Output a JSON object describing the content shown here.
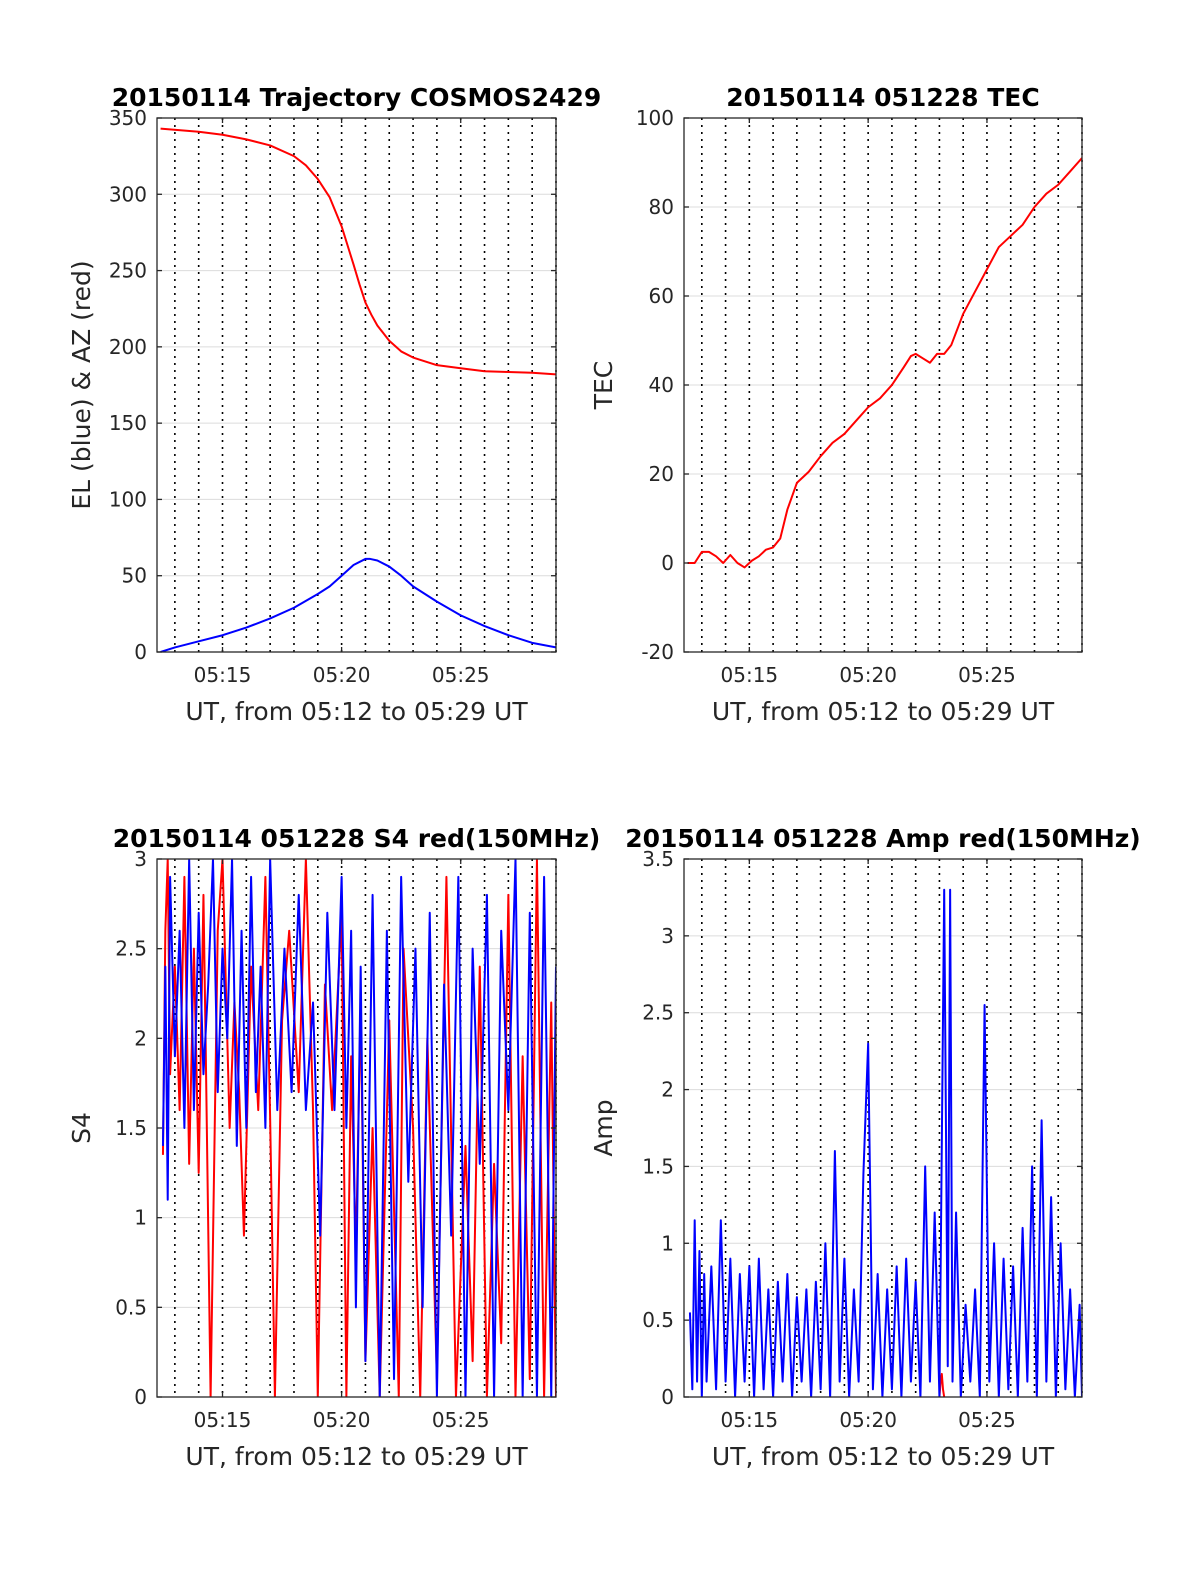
{
  "chart_data": [
    {
      "type": "line",
      "title": "20150114 Trajectory COSMOS2429",
      "xlabel": "UT, from 05:12 to 05:29 UT",
      "ylabel": "EL (blue) & AZ (red)",
      "xlim": [
        12.25,
        29.0
      ],
      "ylim": [
        0,
        350
      ],
      "x_ticks": [
        {
          "v": 15,
          "label": "05:15"
        },
        {
          "v": 20,
          "label": "05:20"
        },
        {
          "v": 25,
          "label": "05:25"
        }
      ],
      "y_ticks": [
        {
          "v": 0,
          "label": "0"
        },
        {
          "v": 50,
          "label": "50"
        },
        {
          "v": 100,
          "label": "100"
        },
        {
          "v": 150,
          "label": "150"
        },
        {
          "v": 200,
          "label": "200"
        },
        {
          "v": 250,
          "label": "250"
        },
        {
          "v": 300,
          "label": "300"
        },
        {
          "v": 350,
          "label": "350"
        }
      ],
      "grid": true,
      "series": [
        {
          "color": "#ff0000",
          "x": [
            12.4,
            14.0,
            15.0,
            16.0,
            17.0,
            18.0,
            18.5,
            19.0,
            19.5,
            20.0,
            20.5,
            20.75,
            21.0,
            21.25,
            21.5,
            22.0,
            22.5,
            23.0,
            24.0,
            25.0,
            26.0,
            27.0,
            28.0,
            29.0
          ],
          "y": [
            343,
            341,
            339,
            336,
            332,
            325,
            319,
            310,
            298,
            279,
            254,
            241,
            229,
            221,
            214,
            204,
            197,
            193,
            188,
            186,
            184,
            183.5,
            183,
            182
          ]
        },
        {
          "color": "#0000ff",
          "x": [
            12.4,
            13.0,
            14.0,
            15.0,
            16.0,
            17.0,
            18.0,
            19.0,
            19.5,
            20.0,
            20.5,
            21.0,
            21.2,
            21.5,
            22.0,
            22.5,
            23.0,
            24.0,
            25.0,
            26.0,
            27.0,
            28.0,
            29.0
          ],
          "y": [
            0,
            3,
            7,
            11,
            16,
            22,
            29,
            38,
            43,
            50,
            57,
            61,
            61,
            60,
            56,
            50,
            43,
            33,
            24,
            17,
            11,
            6,
            3
          ]
        }
      ]
    },
    {
      "type": "line",
      "title": "20150114 051228 TEC",
      "xlabel": "UT, from 05:12 to 05:29 UT",
      "ylabel": "TEC",
      "xlim": [
        12.25,
        29.0
      ],
      "ylim": [
        -20,
        100
      ],
      "x_ticks": [
        {
          "v": 15,
          "label": "05:15"
        },
        {
          "v": 20,
          "label": "05:20"
        },
        {
          "v": 25,
          "label": "05:25"
        }
      ],
      "y_ticks": [
        {
          "v": -20,
          "label": "-20"
        },
        {
          "v": 0,
          "label": "0"
        },
        {
          "v": 20,
          "label": "20"
        },
        {
          "v": 40,
          "label": "40"
        },
        {
          "v": 60,
          "label": "60"
        },
        {
          "v": 80,
          "label": "80"
        },
        {
          "v": 100,
          "label": "100"
        }
      ],
      "grid": true,
      "series": [
        {
          "color": "#ff0000",
          "x": [
            12.4,
            12.7,
            13.0,
            13.3,
            13.6,
            13.9,
            14.2,
            14.5,
            14.8,
            15.1,
            15.4,
            15.7,
            16.0,
            16.3,
            16.6,
            17.0,
            17.5,
            18.0,
            18.5,
            19.0,
            19.5,
            20.0,
            20.5,
            21.0,
            21.5,
            21.8,
            22.0,
            22.3,
            22.6,
            22.9,
            23.2,
            23.5,
            24.0,
            24.5,
            25.0,
            25.5,
            26.0,
            26.5,
            27.0,
            27.5,
            28.0,
            28.5,
            29.0
          ],
          "y": [
            0,
            0,
            2.5,
            2.5,
            1.5,
            0,
            1.8,
            0,
            -1,
            0.5,
            1.5,
            3,
            3.5,
            5.5,
            12,
            18,
            20.5,
            24,
            27,
            29,
            32,
            35,
            37,
            40,
            44,
            46.5,
            47,
            46,
            45,
            47,
            47,
            49,
            56,
            61,
            66,
            71,
            73.5,
            76,
            80,
            83,
            85,
            88,
            91
          ]
        }
      ]
    },
    {
      "type": "line",
      "title": "20150114 051228 S4 red(150MHz)",
      "xlabel": "UT, from 05:12 to 05:29 UT",
      "ylabel": "S4",
      "xlim": [
        12.25,
        29.0
      ],
      "ylim": [
        0,
        3
      ],
      "x_ticks": [
        {
          "v": 15,
          "label": "05:15"
        },
        {
          "v": 20,
          "label": "05:20"
        },
        {
          "v": 25,
          "label": "05:25"
        }
      ],
      "y_ticks": [
        {
          "v": 0,
          "label": "0"
        },
        {
          "v": 0.5,
          "label": "0.5"
        },
        {
          "v": 1,
          "label": "1"
        },
        {
          "v": 1.5,
          "label": "1.5"
        },
        {
          "v": 2,
          "label": "2"
        },
        {
          "v": 2.5,
          "label": "2.5"
        },
        {
          "v": 3,
          "label": "3"
        }
      ],
      "grid": true,
      "series": [
        {
          "color": "#ff0000",
          "x": [
            12.5,
            12.6,
            12.7,
            12.8,
            13.0,
            13.2,
            13.4,
            13.6,
            13.8,
            14.0,
            14.2,
            14.3,
            14.5,
            14.8,
            15.0,
            15.3,
            15.5,
            15.7,
            15.9,
            16.2,
            16.5,
            16.8,
            17.0,
            17.2,
            17.5,
            17.8,
            18.2,
            18.5,
            18.8,
            19.0,
            19.3,
            19.6,
            20.0,
            20.2,
            20.4,
            20.6,
            20.8,
            21.0,
            21.3,
            21.6,
            22.0,
            22.4,
            22.6,
            23.0,
            23.3,
            23.6,
            24.0,
            24.4,
            24.8,
            25.2,
            25.5,
            25.8,
            26.1,
            26.4,
            26.7,
            27.0,
            27.3,
            27.6,
            27.9,
            28.2,
            28.5,
            28.8,
            29.0
          ],
          "y": [
            1.35,
            2.6,
            3.0,
            1.8,
            2.4,
            1.6,
            2.9,
            1.3,
            2.5,
            1.25,
            2.8,
            1.9,
            0.0,
            2.6,
            3.0,
            1.5,
            2.2,
            1.7,
            0.9,
            2.4,
            1.6,
            2.9,
            1.55,
            0.0,
            2.1,
            2.6,
            1.7,
            3.0,
            1.6,
            0.0,
            2.3,
            1.6,
            2.7,
            0.0,
            1.9,
            0.8,
            2.2,
            0.2,
            1.5,
            0.0,
            2.1,
            0.0,
            2.5,
            1.5,
            0.0,
            2.0,
            0.1,
            2.9,
            0.0,
            1.4,
            0.2,
            2.4,
            0.0,
            1.3,
            0.3,
            2.8,
            0.0,
            1.9,
            0.1,
            3.0,
            0.0,
            2.2,
            0.0
          ]
        },
        {
          "color": "#0000ff",
          "x": [
            12.5,
            12.6,
            12.7,
            12.8,
            13.0,
            13.2,
            13.4,
            13.6,
            13.8,
            14.0,
            14.2,
            14.4,
            14.6,
            14.8,
            15.0,
            15.2,
            15.4,
            15.6,
            15.8,
            16.0,
            16.2,
            16.4,
            16.6,
            16.8,
            17.0,
            17.3,
            17.6,
            17.9,
            18.2,
            18.5,
            18.8,
            19.1,
            19.4,
            19.7,
            20.0,
            20.2,
            20.4,
            20.6,
            20.8,
            21.0,
            21.3,
            21.6,
            21.9,
            22.2,
            22.5,
            22.8,
            23.1,
            23.4,
            23.7,
            24.0,
            24.3,
            24.6,
            24.9,
            25.2,
            25.5,
            25.8,
            26.1,
            26.4,
            26.7,
            27.0,
            27.3,
            27.6,
            27.9,
            28.2,
            28.5,
            28.8,
            29.0
          ],
          "y": [
            1.4,
            2.4,
            1.1,
            2.9,
            1.9,
            2.6,
            1.5,
            3.0,
            1.6,
            2.7,
            1.8,
            2.3,
            3.0,
            1.7,
            2.5,
            2.0,
            3.0,
            1.4,
            2.6,
            1.5,
            2.9,
            1.7,
            2.4,
            1.5,
            3.0,
            1.6,
            2.5,
            1.7,
            2.8,
            1.6,
            2.2,
            0.9,
            2.7,
            1.6,
            2.9,
            1.5,
            2.6,
            0.5,
            2.4,
            0.2,
            2.8,
            0.0,
            2.6,
            0.1,
            2.9,
            1.2,
            2.5,
            0.5,
            2.7,
            0.0,
            2.3,
            0.9,
            2.9,
            0.0,
            2.5,
            1.3,
            2.8,
            0.0,
            2.6,
            1.6,
            3.0,
            0.0,
            2.7,
            0.0,
            2.9,
            0.0,
            2.4
          ]
        }
      ]
    },
    {
      "type": "line",
      "title": "20150114 051228 Amp red(150MHz)",
      "xlabel": "UT, from 05:12 to 05:29 UT",
      "ylabel": "Amp",
      "xlim": [
        12.25,
        29.0
      ],
      "ylim": [
        0,
        3.5
      ],
      "x_ticks": [
        {
          "v": 15,
          "label": "05:15"
        },
        {
          "v": 20,
          "label": "05:20"
        },
        {
          "v": 25,
          "label": "05:25"
        }
      ],
      "y_ticks": [
        {
          "v": 0,
          "label": "0"
        },
        {
          "v": 0.5,
          "label": "0.5"
        },
        {
          "v": 1,
          "label": "1"
        },
        {
          "v": 1.5,
          "label": "1.5"
        },
        {
          "v": 2,
          "label": "2"
        },
        {
          "v": 2.5,
          "label": "2.5"
        },
        {
          "v": 3,
          "label": "3"
        },
        {
          "v": 3.5,
          "label": "3.5"
        }
      ],
      "grid": true,
      "series": [
        {
          "color": "#ff0000",
          "x": [
            23.0,
            23.05,
            23.1,
            23.15,
            23.2
          ],
          "y": [
            0.0,
            0.1,
            0.15,
            0.05,
            0.0
          ]
        },
        {
          "color": "#0000ff",
          "x": [
            12.5,
            12.6,
            12.7,
            12.8,
            12.9,
            13.0,
            13.1,
            13.2,
            13.4,
            13.6,
            13.8,
            14.0,
            14.2,
            14.4,
            14.6,
            14.8,
            15.0,
            15.2,
            15.4,
            15.6,
            15.8,
            16.0,
            16.2,
            16.4,
            16.6,
            16.8,
            17.0,
            17.2,
            17.4,
            17.6,
            17.8,
            18.0,
            18.2,
            18.4,
            18.6,
            18.8,
            19.0,
            19.2,
            19.4,
            19.6,
            19.8,
            20.0,
            20.2,
            20.4,
            20.6,
            20.8,
            21.0,
            21.2,
            21.4,
            21.6,
            21.8,
            22.0,
            22.2,
            22.4,
            22.6,
            22.8,
            23.0,
            23.2,
            23.35,
            23.45,
            23.55,
            23.7,
            23.9,
            24.1,
            24.3,
            24.5,
            24.7,
            24.9,
            25.1,
            25.3,
            25.5,
            25.7,
            25.9,
            26.1,
            26.3,
            26.5,
            26.7,
            26.9,
            27.1,
            27.3,
            27.5,
            27.7,
            27.9,
            28.1,
            28.3,
            28.5,
            28.7,
            28.9,
            29.0
          ],
          "y": [
            0.55,
            0.05,
            1.15,
            0.1,
            0.95,
            0.0,
            0.8,
            0.1,
            0.85,
            0.05,
            1.15,
            0.1,
            0.9,
            0.0,
            0.8,
            0.1,
            0.85,
            0.0,
            0.9,
            0.05,
            0.7,
            0.0,
            0.75,
            0.1,
            0.8,
            0.0,
            0.65,
            0.1,
            0.7,
            0.0,
            0.75,
            0.05,
            1.0,
            0.0,
            1.6,
            0.1,
            0.9,
            0.0,
            0.7,
            0.1,
            1.45,
            2.3,
            0.05,
            0.8,
            0.0,
            0.7,
            0.05,
            0.85,
            0.0,
            0.9,
            0.1,
            0.75,
            0.0,
            1.5,
            0.1,
            1.2,
            0.0,
            3.3,
            0.2,
            3.3,
            0.1,
            1.2,
            0.0,
            0.6,
            0.1,
            0.7,
            0.0,
            2.55,
            0.1,
            1.0,
            0.0,
            0.9,
            0.05,
            0.85,
            0.0,
            1.1,
            0.1,
            1.5,
            0.0,
            1.8,
            0.1,
            1.3,
            0.0,
            1.0,
            0.05,
            0.7,
            0.0,
            0.6,
            0.0
          ]
        }
      ]
    }
  ]
}
